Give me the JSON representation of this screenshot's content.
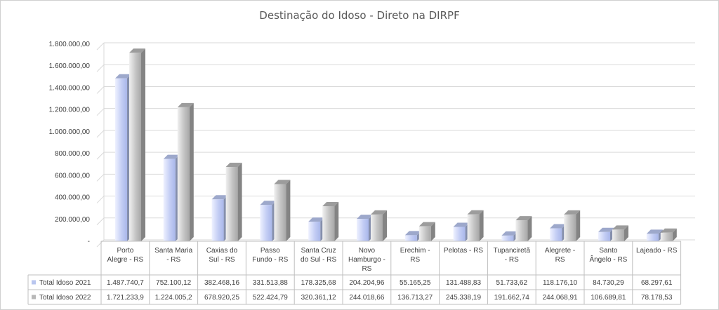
{
  "chart_data": {
    "type": "bar",
    "title": "Destinação do Idoso - Direto na DIRPF",
    "xlabel": "",
    "ylabel": "",
    "ylim": [
      0,
      1800000
    ],
    "y_ticks": [
      "-",
      "200.000,00",
      "400.000,00",
      "600.000,00",
      "800.000,00",
      "1.000.000,00",
      "1.200.000,00",
      "1.400.000,00",
      "1.600.000,00",
      "1.800.000,00"
    ],
    "grid": true,
    "legend": "data-table",
    "categories": [
      [
        "Porto",
        "Alegre - RS"
      ],
      [
        "Santa Maria",
        "- RS"
      ],
      [
        "Caxias do",
        "Sul - RS"
      ],
      [
        "Passo",
        "Fundo - RS"
      ],
      [
        "Santa Cruz",
        "do Sul - RS"
      ],
      [
        "Novo",
        "Hamburgo -",
        "RS"
      ],
      [
        "Erechim -",
        "RS"
      ],
      [
        "Pelotas - RS"
      ],
      [
        "Tupanciretã",
        "- RS"
      ],
      [
        "Alegrete -",
        "RS"
      ],
      [
        "Santo",
        "Ângelo - RS"
      ],
      [
        "Lajeado - RS"
      ]
    ],
    "series": [
      {
        "name": "Total Idoso 2021",
        "color": "#b9c6ef",
        "values": [
          1487740.7,
          752100.12,
          382468.16,
          331513.88,
          178325.68,
          204204.96,
          55165.25,
          131488.83,
          51733.62,
          118176.1,
          84730.29,
          68297.61
        ],
        "labels": [
          "1.487.740,7",
          "752.100,12",
          "382.468,16",
          "331.513,88",
          "178.325,68",
          "204.204,96",
          "55.165,25",
          "131.488,83",
          "51.733,62",
          "118.176,10",
          "84.730,29",
          "68.297,61"
        ]
      },
      {
        "name": "Total Idoso 2022",
        "color": "#b8b8b8",
        "values": [
          1721233.9,
          1224005.2,
          678920.25,
          522424.79,
          320361.12,
          244018.66,
          136713.27,
          245338.19,
          191662.74,
          244068.91,
          106689.81,
          78178.53
        ],
        "labels": [
          "1.721.233,9",
          "1.224.005,2",
          "678.920,25",
          "522.424,79",
          "320.361,12",
          "244.018,66",
          "136.713,27",
          "245.338,19",
          "191.662,74",
          "244.068,91",
          "106.689,81",
          "78.178,53"
        ]
      }
    ]
  }
}
